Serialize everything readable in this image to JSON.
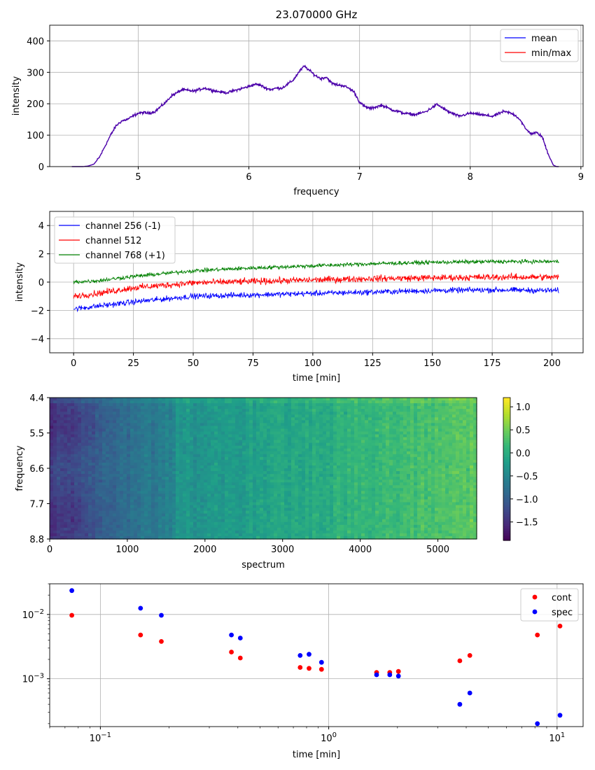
{
  "title": "23.070000 GHz",
  "chart_data": [
    {
      "type": "line",
      "title": "23.070000 GHz",
      "xlabel": "frequency",
      "ylabel": "intensity",
      "xlim": [
        4.2,
        9.02
      ],
      "ylim": [
        0,
        450
      ],
      "xticks": [
        "5",
        "6",
        "7",
        "8",
        "9"
      ],
      "xtick_values": [
        5,
        6,
        7,
        8,
        9
      ],
      "yticks": [
        "0",
        "100",
        "200",
        "300",
        "400"
      ],
      "ytick_values": [
        0,
        100,
        200,
        300,
        400
      ],
      "grid": true,
      "legend_position": "upper right",
      "legend": [
        {
          "label": "mean",
          "color": "#0000ff"
        },
        {
          "label": "min/max",
          "color": "#ff0000"
        }
      ],
      "series": [
        {
          "name": "mean",
          "color": "#4b00aa",
          "x": [
            4.4,
            4.45,
            4.5,
            4.55,
            4.6,
            4.65,
            4.7,
            4.75,
            4.8,
            4.85,
            4.9,
            4.95,
            5.0,
            5.05,
            5.1,
            5.15,
            5.2,
            5.25,
            5.3,
            5.35,
            5.4,
            5.5,
            5.6,
            5.7,
            5.8,
            5.9,
            6.0,
            6.05,
            6.1,
            6.15,
            6.2,
            6.25,
            6.3,
            6.4,
            6.45,
            6.5,
            6.55,
            6.6,
            6.65,
            6.7,
            6.75,
            6.8,
            6.85,
            6.9,
            6.95,
            7.0,
            7.05,
            7.1,
            7.2,
            7.3,
            7.4,
            7.5,
            7.6,
            7.7,
            7.8,
            7.9,
            8.0,
            8.1,
            8.2,
            8.3,
            8.35,
            8.4,
            8.45,
            8.5,
            8.55,
            8.6,
            8.65,
            8.7,
            8.75,
            8.78,
            8.8
          ],
          "y": [
            0,
            0,
            0,
            2,
            8,
            30,
            65,
            100,
            130,
            145,
            150,
            160,
            170,
            172,
            170,
            175,
            190,
            205,
            225,
            235,
            245,
            240,
            250,
            240,
            235,
            245,
            255,
            262,
            260,
            250,
            245,
            250,
            250,
            275,
            300,
            320,
            305,
            290,
            280,
            285,
            265,
            260,
            258,
            250,
            238,
            205,
            190,
            185,
            195,
            180,
            170,
            165,
            175,
            198,
            175,
            160,
            170,
            165,
            160,
            175,
            172,
            165,
            150,
            120,
            105,
            108,
            95,
            45,
            5,
            0,
            0
          ]
        }
      ]
    },
    {
      "type": "line",
      "xlabel": "time [min]",
      "ylabel": "intensity",
      "xlim": [
        -10,
        213
      ],
      "ylim": [
        -5,
        5
      ],
      "xticks": [
        "0",
        "25",
        "50",
        "75",
        "100",
        "125",
        "150",
        "175",
        "200"
      ],
      "xtick_values": [
        0,
        25,
        50,
        75,
        100,
        125,
        150,
        175,
        200
      ],
      "yticks": [
        "−4",
        "−2",
        "0",
        "2",
        "4"
      ],
      "ytick_values": [
        -4,
        -2,
        0,
        2,
        4
      ],
      "grid": true,
      "legend_position": "upper left",
      "series": [
        {
          "name": "channel 256 (-1)",
          "color": "#0000ff",
          "x": [
            0,
            10,
            25,
            50,
            75,
            100,
            125,
            150,
            175,
            203
          ],
          "y": [
            -1.9,
            -1.7,
            -1.4,
            -1.0,
            -0.9,
            -0.8,
            -0.7,
            -0.6,
            -0.55,
            -0.6
          ],
          "noise": 0.17
        },
        {
          "name": "channel 512",
          "color": "#ff0000",
          "x": [
            0,
            10,
            25,
            50,
            75,
            100,
            125,
            150,
            175,
            203
          ],
          "y": [
            -1.0,
            -0.8,
            -0.4,
            -0.05,
            0.05,
            0.15,
            0.25,
            0.3,
            0.35,
            0.35
          ],
          "noise": 0.2
        },
        {
          "name": "channel 768 (+1)",
          "color": "#008000",
          "x": [
            0,
            10,
            25,
            50,
            75,
            100,
            125,
            150,
            175,
            203
          ],
          "y": [
            0.0,
            0.1,
            0.4,
            0.8,
            1.0,
            1.15,
            1.3,
            1.4,
            1.45,
            1.45
          ],
          "noise": 0.12
        }
      ]
    },
    {
      "type": "heatmap",
      "xlabel": "spectrum",
      "ylabel": "frequency",
      "xlim": [
        0,
        5500
      ],
      "xticks": [
        "0",
        "1000",
        "2000",
        "3000",
        "4000",
        "5000"
      ],
      "xtick_values": [
        0,
        1000,
        2000,
        3000,
        4000,
        5000
      ],
      "yticks": [
        "4.4",
        "5.5",
        "6.6",
        "7.7",
        "8.8"
      ],
      "ytick_values": [
        4.4,
        5.5,
        6.6,
        7.7,
        8.8
      ],
      "colorscale": "viridis",
      "vmin": -1.9,
      "vmax": 1.2,
      "colorbar_ticks": [
        "1.0",
        "0.5",
        "0.0",
        "−0.5",
        "−1.0",
        "−1.5"
      ],
      "colorbar_tick_values": [
        1.0,
        0.5,
        0.0,
        -0.5,
        -1.0,
        -1.5
      ]
    },
    {
      "type": "scatter",
      "xlabel": "time [min]",
      "xscale": "log",
      "yscale": "log",
      "xlim": [
        0.06,
        13
      ],
      "ylim": [
        0.00018,
        0.03
      ],
      "xticks": [
        "10⁻¹",
        "10⁰",
        "10¹"
      ],
      "xtick_values": [
        0.1,
        1,
        10
      ],
      "yticks": [
        "10⁻²",
        "10⁻³"
      ],
      "ytick_values": [
        0.01,
        0.001
      ],
      "grid": true,
      "legend_position": "upper right",
      "series": [
        {
          "name": "cont",
          "color": "#ff0000",
          "x": [
            0.075,
            0.15,
            0.185,
            0.375,
            0.41,
            0.75,
            0.82,
            0.93,
            1.62,
            1.85,
            2.02,
            3.75,
            4.15,
            8.2,
            10.3
          ],
          "y": [
            0.0097,
            0.0048,
            0.0038,
            0.0026,
            0.0021,
            0.0015,
            0.00145,
            0.0014,
            0.00125,
            0.00125,
            0.0013,
            0.0019,
            0.0023,
            0.0048,
            0.0066
          ]
        },
        {
          "name": "spec",
          "color": "#0000ff",
          "x": [
            0.075,
            0.15,
            0.185,
            0.375,
            0.41,
            0.75,
            0.82,
            0.93,
            1.62,
            1.85,
            2.02,
            3.75,
            4.15,
            8.2,
            10.3
          ],
          "y": [
            0.0235,
            0.0125,
            0.0097,
            0.0048,
            0.0043,
            0.0023,
            0.0024,
            0.0018,
            0.00115,
            0.00115,
            0.0011,
            0.0004,
            0.0006,
            0.0002,
            0.00027
          ]
        }
      ]
    }
  ]
}
